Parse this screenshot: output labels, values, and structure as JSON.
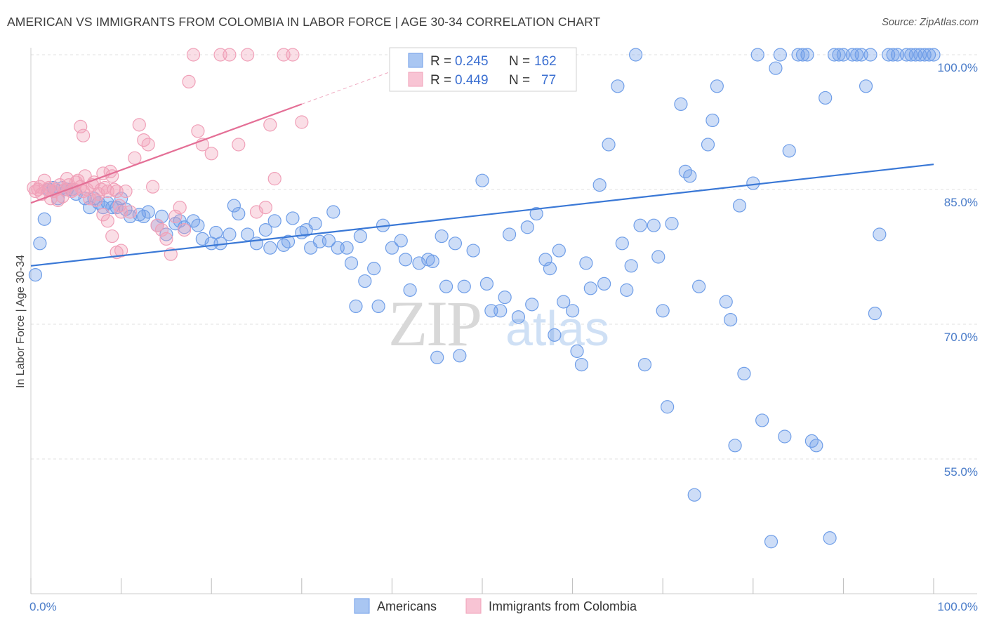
{
  "title": "AMERICAN VS IMMIGRANTS FROM COLOMBIA IN LABOR FORCE | AGE 30-34 CORRELATION CHART",
  "source": "Source: ZipAtlas.com",
  "watermark": {
    "left": "ZIP",
    "right": "atlas"
  },
  "colors": {
    "americans": "#6f9ee8",
    "colombia": "#f0a0b8",
    "americans_line": "#3a78d6",
    "colombia_line": "#e46f96"
  },
  "chart_data": {
    "type": "scatter",
    "ylabel": "In Labor Force | Age 30-34",
    "xlim": [
      0,
      100
    ],
    "ylim": [
      40,
      102
    ],
    "x_tick_labels": [
      {
        "value": 0,
        "label": "0.0%"
      },
      {
        "value": 100,
        "label": "100.0%"
      }
    ],
    "y_tick_labels": [
      {
        "value": 55,
        "label": "55.0%"
      },
      {
        "value": 70,
        "label": "70.0%"
      },
      {
        "value": 85,
        "label": "85.0%"
      },
      {
        "value": 100,
        "label": "100.0%"
      }
    ],
    "legend": [
      {
        "series": "Americans",
        "r_label": "R =",
        "r": "0.245",
        "n_label": "N =",
        "n": "162"
      },
      {
        "series": "Immigrants from Colombia",
        "r_label": "R =",
        "r": "0.449",
        "n_label": "N =",
        "n": "77"
      }
    ],
    "series": [
      {
        "name": "Americans",
        "trend": {
          "x": [
            0,
            100
          ],
          "y": [
            76.5,
            87.8
          ]
        },
        "points": [
          [
            0.5,
            75.5
          ],
          [
            1,
            79
          ],
          [
            1.5,
            81.7
          ],
          [
            2,
            85
          ],
          [
            2.5,
            85.2
          ],
          [
            3,
            84
          ],
          [
            3.5,
            85.2
          ],
          [
            4,
            85
          ],
          [
            4.5,
            85
          ],
          [
            5,
            84.5
          ],
          [
            6,
            84
          ],
          [
            6.5,
            83
          ],
          [
            7,
            84
          ],
          [
            7.5,
            83.5
          ],
          [
            8,
            83
          ],
          [
            8.5,
            83.5
          ],
          [
            9,
            83
          ],
          [
            9.5,
            83
          ],
          [
            10,
            84
          ],
          [
            10.5,
            82.8
          ],
          [
            11,
            82
          ],
          [
            12,
            82.2
          ],
          [
            12.5,
            82
          ],
          [
            13,
            82.5
          ],
          [
            14,
            81
          ],
          [
            14.5,
            82
          ],
          [
            15,
            80
          ],
          [
            16,
            81.2
          ],
          [
            16.5,
            81.5
          ],
          [
            17,
            80.8
          ],
          [
            18,
            81.5
          ],
          [
            18.5,
            81
          ],
          [
            19,
            79.5
          ],
          [
            20,
            79
          ],
          [
            20.5,
            80.2
          ],
          [
            21,
            79
          ],
          [
            22,
            80
          ],
          [
            22.5,
            83.2
          ],
          [
            23,
            82.3
          ],
          [
            24,
            80
          ],
          [
            25,
            79
          ],
          [
            26,
            80.5
          ],
          [
            26.5,
            78.5
          ],
          [
            27,
            81.5
          ],
          [
            28,
            78.8
          ],
          [
            28.5,
            79.2
          ],
          [
            29,
            81.8
          ],
          [
            30,
            80.2
          ],
          [
            30.5,
            80.5
          ],
          [
            31,
            78.5
          ],
          [
            31.5,
            81.2
          ],
          [
            32,
            79.2
          ],
          [
            33,
            79.3
          ],
          [
            33.5,
            82.5
          ],
          [
            34,
            78.5
          ],
          [
            35,
            78.5
          ],
          [
            35.5,
            76.8
          ],
          [
            36,
            72
          ],
          [
            36.5,
            79.8
          ],
          [
            37,
            74.8
          ],
          [
            38,
            76.2
          ],
          [
            38.5,
            72
          ],
          [
            39,
            81
          ],
          [
            40,
            78.5
          ],
          [
            41,
            79.3
          ],
          [
            41.5,
            77.2
          ],
          [
            42,
            73.8
          ],
          [
            43,
            76.8
          ],
          [
            44,
            77.2
          ],
          [
            44.5,
            77
          ],
          [
            45,
            66.3
          ],
          [
            45.5,
            79.8
          ],
          [
            46,
            74.2
          ],
          [
            47,
            79
          ],
          [
            47.5,
            66.5
          ],
          [
            48,
            74.2
          ],
          [
            49,
            78.2
          ],
          [
            50,
            86
          ],
          [
            50.5,
            74.5
          ],
          [
            51,
            71.5
          ],
          [
            52,
            71.5
          ],
          [
            52.5,
            73
          ],
          [
            53,
            80
          ],
          [
            54,
            70.8
          ],
          [
            55,
            80.8
          ],
          [
            55.5,
            72.2
          ],
          [
            56,
            82.3
          ],
          [
            57,
            77.2
          ],
          [
            57.5,
            76.2
          ],
          [
            58,
            68.8
          ],
          [
            58.5,
            78.2
          ],
          [
            59,
            72.5
          ],
          [
            60,
            71.5
          ],
          [
            60.5,
            67
          ],
          [
            61,
            65.5
          ],
          [
            61.5,
            76.8
          ],
          [
            62,
            74
          ],
          [
            63,
            85.5
          ],
          [
            63.5,
            74.5
          ],
          [
            64,
            90
          ],
          [
            65,
            96.5
          ],
          [
            65.5,
            79
          ],
          [
            66,
            73.8
          ],
          [
            66.5,
            76.5
          ],
          [
            67,
            100
          ],
          [
            67.5,
            81
          ],
          [
            68,
            65.5
          ],
          [
            69,
            81
          ],
          [
            69.5,
            77.5
          ],
          [
            70,
            71.5
          ],
          [
            70.5,
            60.8
          ],
          [
            71,
            81.2
          ],
          [
            72,
            94.5
          ],
          [
            72.5,
            87
          ],
          [
            73,
            86.5
          ],
          [
            73.5,
            51
          ],
          [
            74,
            74.2
          ],
          [
            75,
            90
          ],
          [
            75.5,
            92.7
          ],
          [
            76,
            96.5
          ],
          [
            77,
            72.5
          ],
          [
            77.5,
            70.5
          ],
          [
            78,
            56.5
          ],
          [
            78.5,
            83.2
          ],
          [
            79,
            64.5
          ],
          [
            80,
            85.7
          ],
          [
            80.5,
            100
          ],
          [
            81,
            59.3
          ],
          [
            82,
            45.8
          ],
          [
            82.5,
            98.5
          ],
          [
            83,
            100
          ],
          [
            83.5,
            57.5
          ],
          [
            84,
            89.3
          ],
          [
            85,
            100
          ],
          [
            85.5,
            100
          ],
          [
            86,
            100
          ],
          [
            86.5,
            57
          ],
          [
            87,
            56.5
          ],
          [
            88,
            95.2
          ],
          [
            88.5,
            46.2
          ],
          [
            89,
            100
          ],
          [
            89.5,
            100
          ],
          [
            90,
            100
          ],
          [
            91,
            100
          ],
          [
            91.5,
            100
          ],
          [
            92,
            100
          ],
          [
            92.5,
            96.5
          ],
          [
            93,
            100
          ],
          [
            93.5,
            71.2
          ],
          [
            94,
            80
          ],
          [
            95,
            100
          ],
          [
            95.5,
            100
          ],
          [
            96,
            100
          ],
          [
            97,
            100
          ],
          [
            97.5,
            100
          ],
          [
            98,
            100
          ],
          [
            98.5,
            100
          ],
          [
            99,
            100
          ],
          [
            99.5,
            100
          ],
          [
            100,
            100
          ]
        ]
      },
      {
        "name": "Immigrants from Colombia",
        "trend": {
          "x": [
            0,
            30
          ],
          "y": [
            83.5,
            94.5
          ]
        },
        "points": [
          [
            0.3,
            85.2
          ],
          [
            0.5,
            84.8
          ],
          [
            0.8,
            85
          ],
          [
            1,
            85.3
          ],
          [
            1.2,
            84.5
          ],
          [
            1.5,
            86
          ],
          [
            1.8,
            85
          ],
          [
            2,
            85.2
          ],
          [
            2.2,
            84
          ],
          [
            2.5,
            84.8
          ],
          [
            2.8,
            85
          ],
          [
            3,
            83.8
          ],
          [
            3.2,
            85.5
          ],
          [
            3.5,
            84.2
          ],
          [
            3.8,
            85
          ],
          [
            4,
            86.2
          ],
          [
            4.2,
            85.5
          ],
          [
            4.5,
            84.8
          ],
          [
            4.8,
            85
          ],
          [
            5,
            85.8
          ],
          [
            5.2,
            86
          ],
          [
            5.5,
            85.3
          ],
          [
            5.8,
            84.8
          ],
          [
            6,
            86.5
          ],
          [
            6.2,
            85
          ],
          [
            6.5,
            84
          ],
          [
            6.8,
            85.5
          ],
          [
            7,
            85.8
          ],
          [
            7.2,
            83.8
          ],
          [
            7.5,
            84.5
          ],
          [
            7.8,
            85
          ],
          [
            8,
            86.8
          ],
          [
            8.2,
            85.2
          ],
          [
            8.5,
            84.8
          ],
          [
            8.8,
            87
          ],
          [
            9,
            86.5
          ],
          [
            9.2,
            85
          ],
          [
            9.5,
            84.8
          ],
          [
            9.8,
            83.2
          ],
          [
            10,
            82.5
          ],
          [
            5.5,
            92
          ],
          [
            5.8,
            91
          ],
          [
            8,
            82.2
          ],
          [
            8.5,
            81.5
          ],
          [
            9,
            79.8
          ],
          [
            9.5,
            78
          ],
          [
            10,
            78.2
          ],
          [
            10.5,
            84.8
          ],
          [
            11,
            82.5
          ],
          [
            11.5,
            88.5
          ],
          [
            12,
            92.2
          ],
          [
            12.5,
            90.5
          ],
          [
            13,
            90
          ],
          [
            13.5,
            85.3
          ],
          [
            14,
            81
          ],
          [
            14.5,
            80.5
          ],
          [
            15,
            79.5
          ],
          [
            15.5,
            77.8
          ],
          [
            16,
            82
          ],
          [
            16.5,
            83
          ],
          [
            17,
            80.5
          ],
          [
            17.5,
            97
          ],
          [
            18,
            100
          ],
          [
            18.5,
            91.5
          ],
          [
            19,
            90
          ],
          [
            20,
            89
          ],
          [
            21,
            100
          ],
          [
            22,
            100
          ],
          [
            23,
            90
          ],
          [
            24,
            100
          ],
          [
            25,
            82.5
          ],
          [
            26,
            83
          ],
          [
            27,
            86.2
          ],
          [
            28,
            100
          ],
          [
            29,
            100
          ],
          [
            30,
            92.5
          ],
          [
            26.5,
            92.2
          ]
        ]
      }
    ]
  },
  "bottom_legend": [
    "Americans",
    "Immigrants from Colombia"
  ]
}
